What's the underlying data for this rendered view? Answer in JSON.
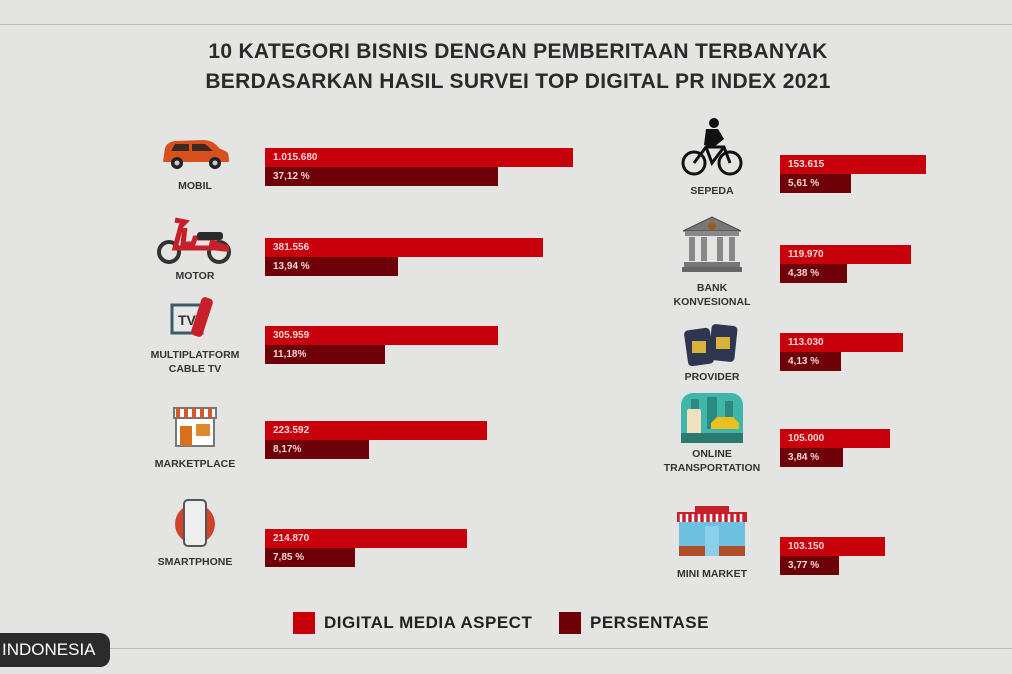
{
  "chart_data": {
    "type": "bar",
    "title": [
      "10 KATEGORI BISNIS DENGAN PEMBERITAAN TERBANYAK",
      "BERDASARKAN HASIL SURVEI TOP DIGITAL PR INDEX 2021"
    ],
    "legend": [
      {
        "name": "DIGITAL MEDIA ASPECT",
        "color": "#c8000c"
      },
      {
        "name": "PERSENTASE",
        "color": "#6e0008"
      }
    ],
    "legend_position": "bottom",
    "categories": [
      {
        "label": [
          "MOBIL"
        ],
        "icon": "car-icon",
        "value": 1015680,
        "value_label": "1.015.680",
        "percent": 37.12,
        "percent_label": "37,12 %"
      },
      {
        "label": [
          "MOTOR"
        ],
        "icon": "scooter-icon",
        "value": 381556,
        "value_label": "381.556",
        "percent": 13.94,
        "percent_label": "13,94 %"
      },
      {
        "label": [
          "MULTIPLATFORM",
          "CABLE TV"
        ],
        "icon": "tv-remote-icon",
        "value": 305959,
        "value_label": "305.959",
        "percent": 11.18,
        "percent_label": "11,18%"
      },
      {
        "label": [
          "MARKETPLACE"
        ],
        "icon": "storefront-icon",
        "value": 223592,
        "value_label": "223.592",
        "percent": 8.17,
        "percent_label": "8,17%"
      },
      {
        "label": [
          "SMARTPHONE"
        ],
        "icon": "smartphone-icon",
        "value": 214870,
        "value_label": "214.870",
        "percent": 7.85,
        "percent_label": "7,85 %"
      },
      {
        "label": [
          "SEPEDA"
        ],
        "icon": "cyclist-icon",
        "value": 153615,
        "value_label": "153.615",
        "percent": 5.61,
        "percent_label": "5,61 %"
      },
      {
        "label": [
          "BANK",
          "KONVESIONAL"
        ],
        "icon": "bank-icon",
        "value": 119970,
        "value_label": "119.970",
        "percent": 4.38,
        "percent_label": "4,38 %"
      },
      {
        "label": [
          "PROVIDER"
        ],
        "icon": "sim-card-icon",
        "value": 113030,
        "value_label": "113.030",
        "percent": 4.13,
        "percent_label": "4,13 %"
      },
      {
        "label": [
          "ONLINE",
          "TRANSPORTATION"
        ],
        "icon": "ride-app-icon",
        "value": 105000,
        "value_label": "105.000",
        "percent": 3.84,
        "percent_label": "3,84 %"
      },
      {
        "label": [
          "MINI MARKET"
        ],
        "icon": "minimarket-icon",
        "value": 103150,
        "value_label": "103.150",
        "percent": 3.77,
        "percent_label": "3,77 %"
      }
    ]
  },
  "watermark": "INDONESIA"
}
